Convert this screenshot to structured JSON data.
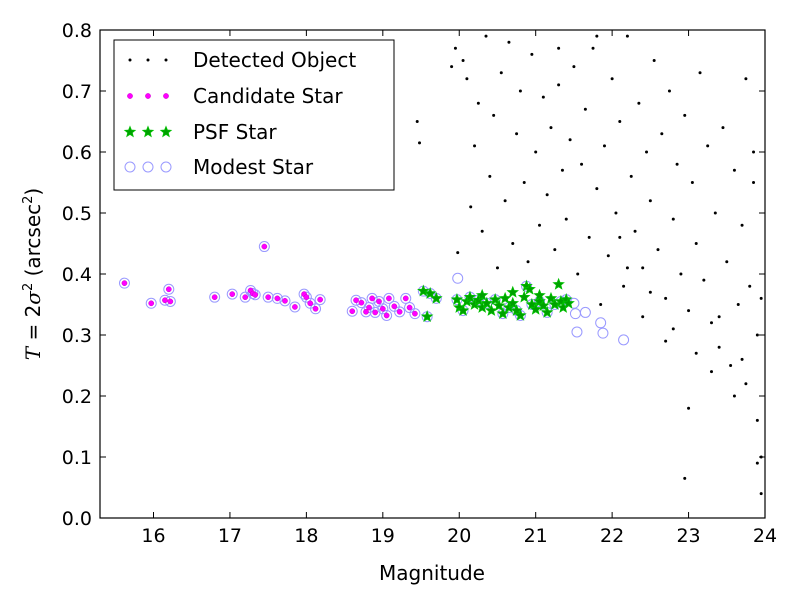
{
  "chart_data": {
    "type": "scatter",
    "xlabel": "Magnitude",
    "ylabel": {
      "symbol_T": "T",
      "equals_two": " = 2",
      "sigma": "σ",
      "sq": "2",
      "unit_open": " (arcsec",
      "unit_sq": "2",
      "unit_close": ")"
    },
    "xlim": [
      15.3,
      24
    ],
    "ylim": [
      0,
      0.8
    ],
    "xticks": [
      "16",
      "17",
      "18",
      "19",
      "20",
      "21",
      "22",
      "23",
      "24"
    ],
    "yticks": [
      "0.0",
      "0.1",
      "0.2",
      "0.3",
      "0.4",
      "0.5",
      "0.6",
      "0.7",
      "0.8"
    ],
    "grid": false,
    "legend_position": "top-left",
    "colors": {
      "detected": "#000000",
      "candidate": "#ff00ff",
      "psf_fill": "#00a000",
      "psf_edge": "#00c000",
      "modest": "#9999ff"
    },
    "series": [
      {
        "name": "Detected Object",
        "marker": "dot",
        "color": "#000000",
        "points": [
          [
            19.45,
            0.65
          ],
          [
            19.48,
            0.615
          ],
          [
            19.9,
            0.74
          ],
          [
            19.95,
            0.77
          ],
          [
            19.98,
            0.435
          ],
          [
            20.05,
            0.75
          ],
          [
            20.1,
            0.72
          ],
          [
            20.15,
            0.51
          ],
          [
            20.2,
            0.61
          ],
          [
            20.25,
            0.68
          ],
          [
            20.3,
            0.47
          ],
          [
            20.35,
            0.79
          ],
          [
            20.4,
            0.56
          ],
          [
            20.45,
            0.66
          ],
          [
            20.5,
            0.41
          ],
          [
            20.55,
            0.73
          ],
          [
            20.6,
            0.52
          ],
          [
            20.65,
            0.78
          ],
          [
            20.7,
            0.45
          ],
          [
            20.75,
            0.63
          ],
          [
            20.8,
            0.7
          ],
          [
            20.85,
            0.55
          ],
          [
            20.9,
            0.42
          ],
          [
            20.95,
            0.76
          ],
          [
            21.0,
            0.6
          ],
          [
            21.05,
            0.48
          ],
          [
            21.1,
            0.69
          ],
          [
            21.15,
            0.53
          ],
          [
            21.2,
            0.64
          ],
          [
            21.25,
            0.44
          ],
          [
            21.3,
            0.71
          ],
          [
            21.35,
            0.57
          ],
          [
            21.4,
            0.49
          ],
          [
            21.45,
            0.62
          ],
          [
            21.5,
            0.74
          ],
          [
            21.55,
            0.4
          ],
          [
            21.6,
            0.58
          ],
          [
            21.65,
            0.67
          ],
          [
            21.7,
            0.46
          ],
          [
            21.75,
            0.77
          ],
          [
            21.8,
            0.54
          ],
          [
            21.85,
            0.35
          ],
          [
            21.9,
            0.61
          ],
          [
            21.95,
            0.43
          ],
          [
            22.0,
            0.72
          ],
          [
            22.05,
            0.5
          ],
          [
            22.1,
            0.65
          ],
          [
            22.15,
            0.38
          ],
          [
            22.2,
            0.79
          ],
          [
            22.25,
            0.56
          ],
          [
            22.3,
            0.47
          ],
          [
            22.35,
            0.68
          ],
          [
            22.4,
            0.41
          ],
          [
            22.45,
            0.6
          ],
          [
            22.5,
            0.52
          ],
          [
            22.55,
            0.75
          ],
          [
            22.6,
            0.44
          ],
          [
            22.65,
            0.63
          ],
          [
            22.7,
            0.36
          ],
          [
            22.75,
            0.7
          ],
          [
            22.8,
            0.49
          ],
          [
            22.85,
            0.58
          ],
          [
            22.9,
            0.4
          ],
          [
            22.95,
            0.66
          ],
          [
            23.0,
            0.34
          ],
          [
            23.05,
            0.55
          ],
          [
            23.1,
            0.45
          ],
          [
            23.15,
            0.73
          ],
          [
            23.2,
            0.39
          ],
          [
            23.25,
            0.61
          ],
          [
            23.3,
            0.32
          ],
          [
            23.35,
            0.5
          ],
          [
            23.4,
            0.28
          ],
          [
            23.45,
            0.64
          ],
          [
            23.5,
            0.42
          ],
          [
            23.55,
            0.25
          ],
          [
            23.6,
            0.57
          ],
          [
            23.65,
            0.35
          ],
          [
            23.7,
            0.48
          ],
          [
            23.75,
            0.22
          ],
          [
            23.8,
            0.38
          ],
          [
            23.85,
            0.6
          ],
          [
            23.9,
            0.3
          ],
          [
            23.95,
            0.1
          ],
          [
            21.3,
            0.77
          ],
          [
            21.8,
            0.79
          ],
          [
            22.1,
            0.46
          ],
          [
            22.4,
            0.33
          ],
          [
            22.7,
            0.29
          ],
          [
            23.0,
            0.18
          ],
          [
            23.3,
            0.24
          ],
          [
            23.6,
            0.2
          ],
          [
            23.9,
            0.16
          ],
          [
            22.95,
            0.065
          ],
          [
            23.95,
            0.04
          ],
          [
            23.9,
            0.09
          ],
          [
            23.75,
            0.72
          ],
          [
            23.85,
            0.55
          ],
          [
            22.2,
            0.41
          ],
          [
            22.5,
            0.37
          ],
          [
            22.8,
            0.31
          ],
          [
            23.1,
            0.27
          ],
          [
            23.4,
            0.33
          ],
          [
            23.7,
            0.26
          ],
          [
            23.95,
            0.36
          ]
        ]
      },
      {
        "name": "Candidate Star",
        "marker": "dot",
        "color": "#ff00ff",
        "points": [
          [
            15.62,
            0.385
          ],
          [
            15.97,
            0.352
          ],
          [
            16.15,
            0.357
          ],
          [
            16.2,
            0.375
          ],
          [
            16.22,
            0.355
          ],
          [
            16.8,
            0.362
          ],
          [
            17.03,
            0.367
          ],
          [
            17.2,
            0.362
          ],
          [
            17.27,
            0.373
          ],
          [
            17.3,
            0.368
          ],
          [
            17.33,
            0.366
          ],
          [
            17.45,
            0.445
          ],
          [
            17.5,
            0.362
          ],
          [
            17.62,
            0.36
          ],
          [
            17.72,
            0.356
          ],
          [
            17.85,
            0.346
          ],
          [
            17.97,
            0.367
          ],
          [
            18.0,
            0.362
          ],
          [
            18.05,
            0.352
          ],
          [
            18.12,
            0.343
          ],
          [
            18.18,
            0.358
          ],
          [
            18.6,
            0.339
          ],
          [
            18.65,
            0.357
          ],
          [
            18.72,
            0.353
          ],
          [
            18.78,
            0.338
          ],
          [
            18.82,
            0.345
          ],
          [
            18.86,
            0.36
          ],
          [
            18.9,
            0.337
          ],
          [
            18.95,
            0.355
          ],
          [
            19.0,
            0.343
          ],
          [
            19.05,
            0.332
          ],
          [
            19.08,
            0.36
          ],
          [
            19.15,
            0.347
          ],
          [
            19.22,
            0.338
          ],
          [
            19.3,
            0.36
          ],
          [
            19.35,
            0.345
          ],
          [
            19.42,
            0.335
          ]
        ]
      },
      {
        "name": "PSF Star",
        "marker": "star",
        "color": "#00a000",
        "points": [
          [
            19.53,
            0.372
          ],
          [
            19.58,
            0.33
          ],
          [
            19.62,
            0.368
          ],
          [
            19.7,
            0.36
          ],
          [
            19.97,
            0.358
          ],
          [
            20.0,
            0.345
          ],
          [
            20.05,
            0.34
          ],
          [
            20.1,
            0.355
          ],
          [
            20.14,
            0.362
          ],
          [
            20.2,
            0.35
          ],
          [
            20.25,
            0.357
          ],
          [
            20.3,
            0.345
          ],
          [
            20.36,
            0.352
          ],
          [
            20.42,
            0.34
          ],
          [
            20.47,
            0.358
          ],
          [
            20.52,
            0.348
          ],
          [
            20.57,
            0.335
          ],
          [
            20.6,
            0.36
          ],
          [
            20.65,
            0.345
          ],
          [
            20.7,
            0.352
          ],
          [
            20.75,
            0.34
          ],
          [
            20.8,
            0.332
          ],
          [
            20.85,
            0.362
          ],
          [
            20.88,
            0.38
          ],
          [
            20.92,
            0.375
          ],
          [
            20.95,
            0.35
          ],
          [
            21.0,
            0.342
          ],
          [
            21.05,
            0.355
          ],
          [
            21.1,
            0.348
          ],
          [
            21.15,
            0.337
          ],
          [
            21.2,
            0.36
          ],
          [
            21.25,
            0.35
          ],
          [
            21.3,
            0.383
          ],
          [
            21.33,
            0.355
          ],
          [
            21.36,
            0.345
          ],
          [
            21.4,
            0.358
          ],
          [
            21.43,
            0.352
          ],
          [
            20.3,
            0.365
          ],
          [
            20.7,
            0.37
          ],
          [
            21.05,
            0.365
          ]
        ]
      },
      {
        "name": "Modest Star",
        "marker": "ring",
        "color": "#9999ff",
        "points": [
          [
            15.62,
            0.385
          ],
          [
            15.97,
            0.352
          ],
          [
            16.15,
            0.357
          ],
          [
            16.2,
            0.375
          ],
          [
            16.22,
            0.355
          ],
          [
            16.8,
            0.362
          ],
          [
            17.03,
            0.367
          ],
          [
            17.2,
            0.362
          ],
          [
            17.27,
            0.373
          ],
          [
            17.3,
            0.368
          ],
          [
            17.33,
            0.366
          ],
          [
            17.45,
            0.445
          ],
          [
            17.5,
            0.362
          ],
          [
            17.62,
            0.36
          ],
          [
            17.72,
            0.356
          ],
          [
            17.85,
            0.346
          ],
          [
            17.97,
            0.367
          ],
          [
            18.0,
            0.362
          ],
          [
            18.05,
            0.352
          ],
          [
            18.12,
            0.343
          ],
          [
            18.18,
            0.358
          ],
          [
            18.6,
            0.339
          ],
          [
            18.65,
            0.357
          ],
          [
            18.72,
            0.353
          ],
          [
            18.78,
            0.338
          ],
          [
            18.82,
            0.345
          ],
          [
            18.86,
            0.36
          ],
          [
            18.9,
            0.337
          ],
          [
            18.95,
            0.355
          ],
          [
            19.0,
            0.343
          ],
          [
            19.05,
            0.332
          ],
          [
            19.08,
            0.36
          ],
          [
            19.15,
            0.347
          ],
          [
            19.22,
            0.338
          ],
          [
            19.3,
            0.36
          ],
          [
            19.35,
            0.345
          ],
          [
            19.42,
            0.335
          ],
          [
            19.98,
            0.393
          ],
          [
            19.53,
            0.372
          ],
          [
            19.58,
            0.33
          ],
          [
            19.62,
            0.368
          ],
          [
            19.7,
            0.36
          ],
          [
            19.97,
            0.358
          ],
          [
            20.05,
            0.34
          ],
          [
            20.14,
            0.362
          ],
          [
            20.25,
            0.357
          ],
          [
            20.36,
            0.352
          ],
          [
            20.47,
            0.358
          ],
          [
            20.57,
            0.335
          ],
          [
            20.65,
            0.345
          ],
          [
            20.75,
            0.34
          ],
          [
            20.8,
            0.332
          ],
          [
            20.88,
            0.38
          ],
          [
            20.95,
            0.35
          ],
          [
            21.05,
            0.355
          ],
          [
            21.15,
            0.337
          ],
          [
            21.25,
            0.35
          ],
          [
            21.33,
            0.355
          ],
          [
            21.4,
            0.358
          ],
          [
            21.5,
            0.352
          ],
          [
            21.52,
            0.335
          ],
          [
            21.54,
            0.305
          ],
          [
            21.65,
            0.337
          ],
          [
            21.85,
            0.32
          ],
          [
            21.88,
            0.303
          ],
          [
            22.15,
            0.292
          ]
        ]
      }
    ]
  }
}
